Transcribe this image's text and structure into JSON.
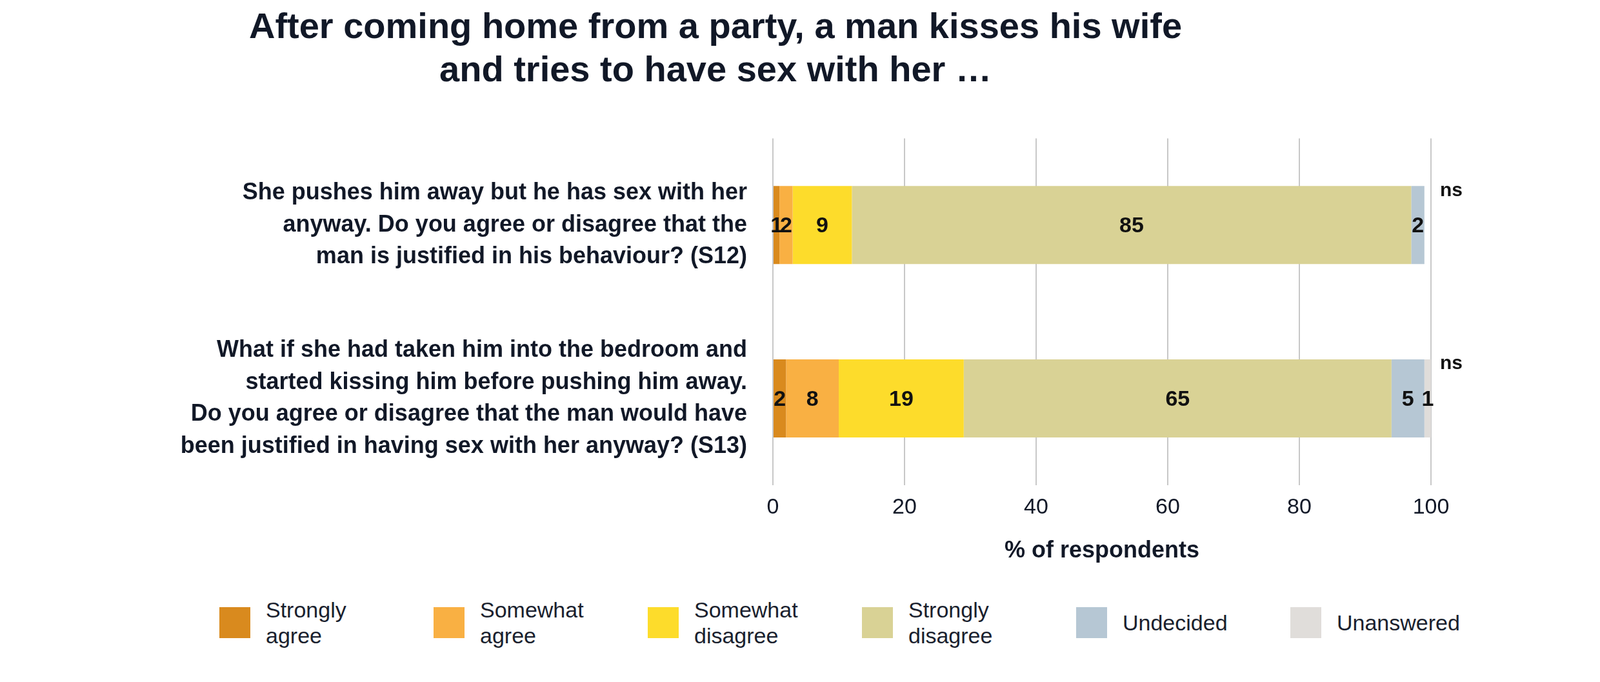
{
  "chart_data": {
    "type": "bar",
    "orientation": "horizontal",
    "stacked": true,
    "data_labels": true,
    "grid": true,
    "legend": "bottom",
    "title": "After coming home from a party, a man kisses his wife\nand tries to have sex with her …",
    "categories": [
      "She pushes him away but he has sex with her\nanyway. Do you agree or disagree that the\nman is justified in his behaviour? (S12)",
      "What if she had taken him into the bedroom and\nstarted kissing him before pushing him away.\nDo you agree or disagree that the man would have\nbeen justified in having sex with her anyway? (S13)"
    ],
    "annotations": [
      "ns",
      "ns"
    ],
    "x_label": "% of respondents",
    "xlim": [
      0,
      100
    ],
    "xticks": [
      0,
      20,
      40,
      60,
      80,
      100
    ],
    "series": [
      {
        "name": "Strongly agree",
        "color": "#d98a1e",
        "values": [
          1,
          2
        ]
      },
      {
        "name": "Somewhat agree",
        "color": "#f9b043",
        "values": [
          2,
          8
        ]
      },
      {
        "name": "Somewhat disagree",
        "color": "#fddc2b",
        "values": [
          9,
          19
        ]
      },
      {
        "name": "Strongly disagree",
        "color": "#d9d295",
        "values": [
          85,
          65
        ]
      },
      {
        "name": "Undecided",
        "color": "#b6c7d4",
        "values": [
          2,
          5
        ]
      },
      {
        "name": "Unanswered",
        "color": "#e0ddda",
        "values": [
          null,
          1
        ]
      }
    ]
  }
}
